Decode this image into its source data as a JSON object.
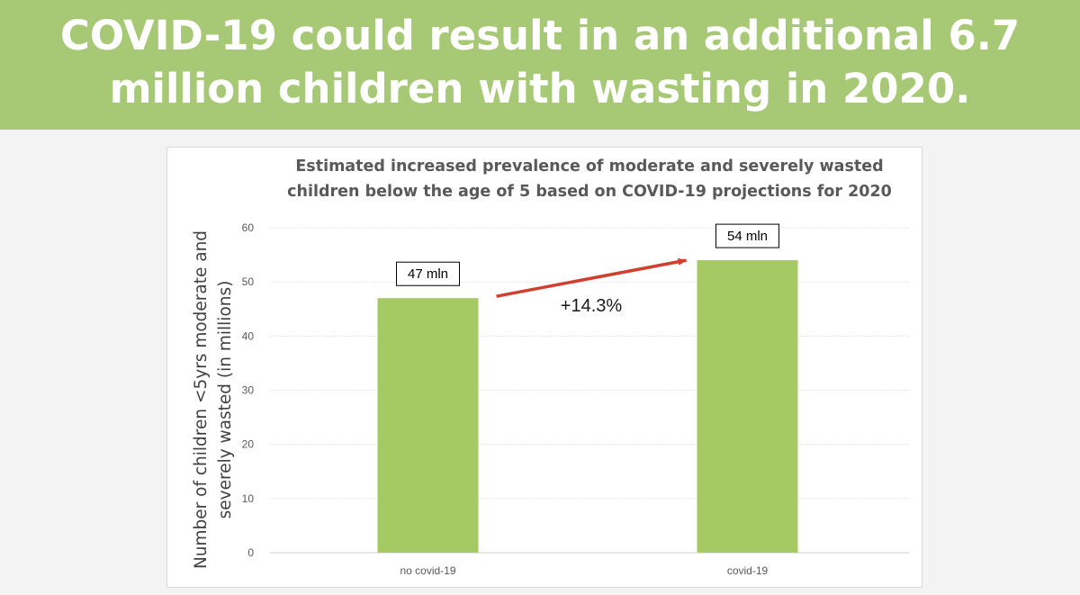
{
  "slide": {
    "headline": "COVID-19 could result in an additional 6.7 million children with wasting in 2020."
  },
  "colors": {
    "banner": "#a7c874",
    "bar": "#a5c963",
    "arrow": "#d13f2e",
    "grid": "#d9d9d9"
  },
  "chart_data": {
    "type": "bar",
    "title_lines": [
      "Estimated increased prevalence of moderate and severely wasted",
      "children below the age of 5 based on COVID-19 projections for 2020"
    ],
    "ylabel_lines": [
      "Number of children <5yrs moderate and",
      "severely wasted (in millions)"
    ],
    "xlabel": "",
    "categories": [
      "no covid-19",
      "covid-19"
    ],
    "values": [
      47,
      54
    ],
    "data_labels": [
      "47 mln",
      "54 mln"
    ],
    "ylim": [
      0,
      60
    ],
    "yticks": [
      0,
      10,
      20,
      30,
      40,
      50,
      60
    ],
    "grid": true,
    "annotation": {
      "text": "+14.3%",
      "from_category": "no covid-19",
      "to_category": "covid-19"
    }
  }
}
